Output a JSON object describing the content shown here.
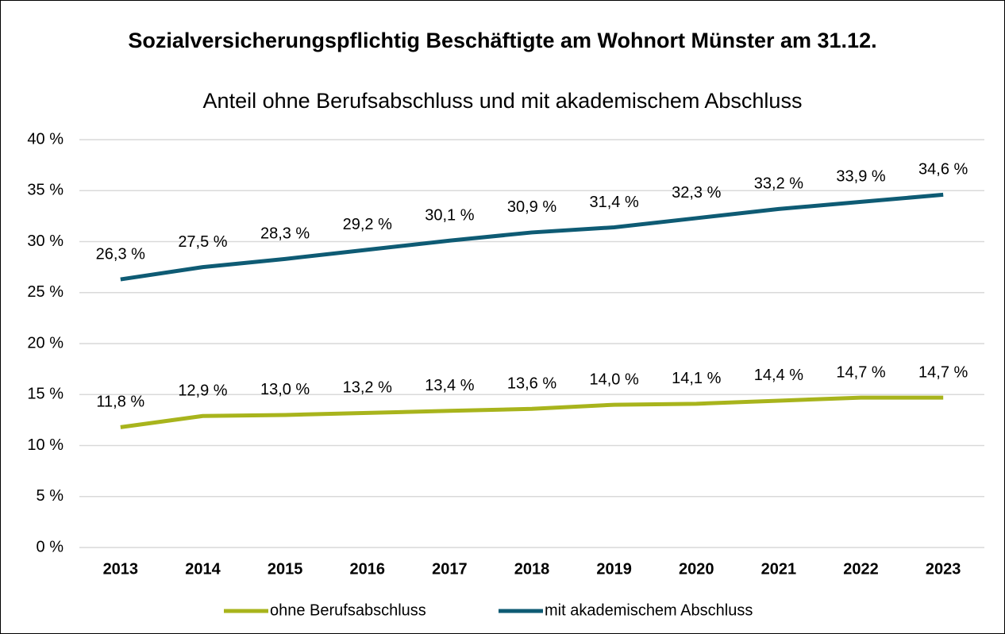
{
  "chart_data": {
    "type": "line",
    "title": "Sozialversicherungspflichtig Beschäftigte am Wohnort Münster am 31.12.",
    "subtitle": "Anteil ohne Berufsabschluss und mit akademischem Abschluss",
    "categories": [
      "2013",
      "2014",
      "2015",
      "2016",
      "2017",
      "2018",
      "2019",
      "2020",
      "2021",
      "2022",
      "2023"
    ],
    "series": [
      {
        "name": "ohne Berufsabschluss",
        "color": "#a8b41c",
        "values": [
          11.8,
          12.9,
          13.0,
          13.2,
          13.4,
          13.6,
          14.0,
          14.1,
          14.4,
          14.7,
          14.7
        ],
        "value_labels": [
          "11,8 %",
          "12,9 %",
          "13,0 %",
          "13,2 %",
          "13,4 %",
          "13,6 %",
          "14,0 %",
          "14,1 %",
          "14,4 %",
          "14,7 %",
          "14,7 %"
        ]
      },
      {
        "name": "mit akademischem Abschluss",
        "color": "#0e5b74",
        "values": [
          26.3,
          27.5,
          28.3,
          29.2,
          30.1,
          30.9,
          31.4,
          32.3,
          33.2,
          33.9,
          34.6
        ],
        "value_labels": [
          "26,3 %",
          "27,5 %",
          "28,3 %",
          "29,2 %",
          "30,1 %",
          "30,9 %",
          "31,4 %",
          "32,3 %",
          "33,2 %",
          "33,9 %",
          "34,6 %"
        ]
      }
    ],
    "ylim": [
      0,
      40
    ],
    "yticks": [
      {
        "value": 0,
        "label": "0 %"
      },
      {
        "value": 5,
        "label": "5 %"
      },
      {
        "value": 10,
        "label": "10 %"
      },
      {
        "value": 15,
        "label": "15 %"
      },
      {
        "value": 20,
        "label": "20 %"
      },
      {
        "value": 25,
        "label": "25 %"
      },
      {
        "value": 30,
        "label": "30 %"
      },
      {
        "value": 35,
        "label": "35 %"
      },
      {
        "value": 40,
        "label": "40 %"
      }
    ],
    "grid": true,
    "legend": "bottom"
  }
}
